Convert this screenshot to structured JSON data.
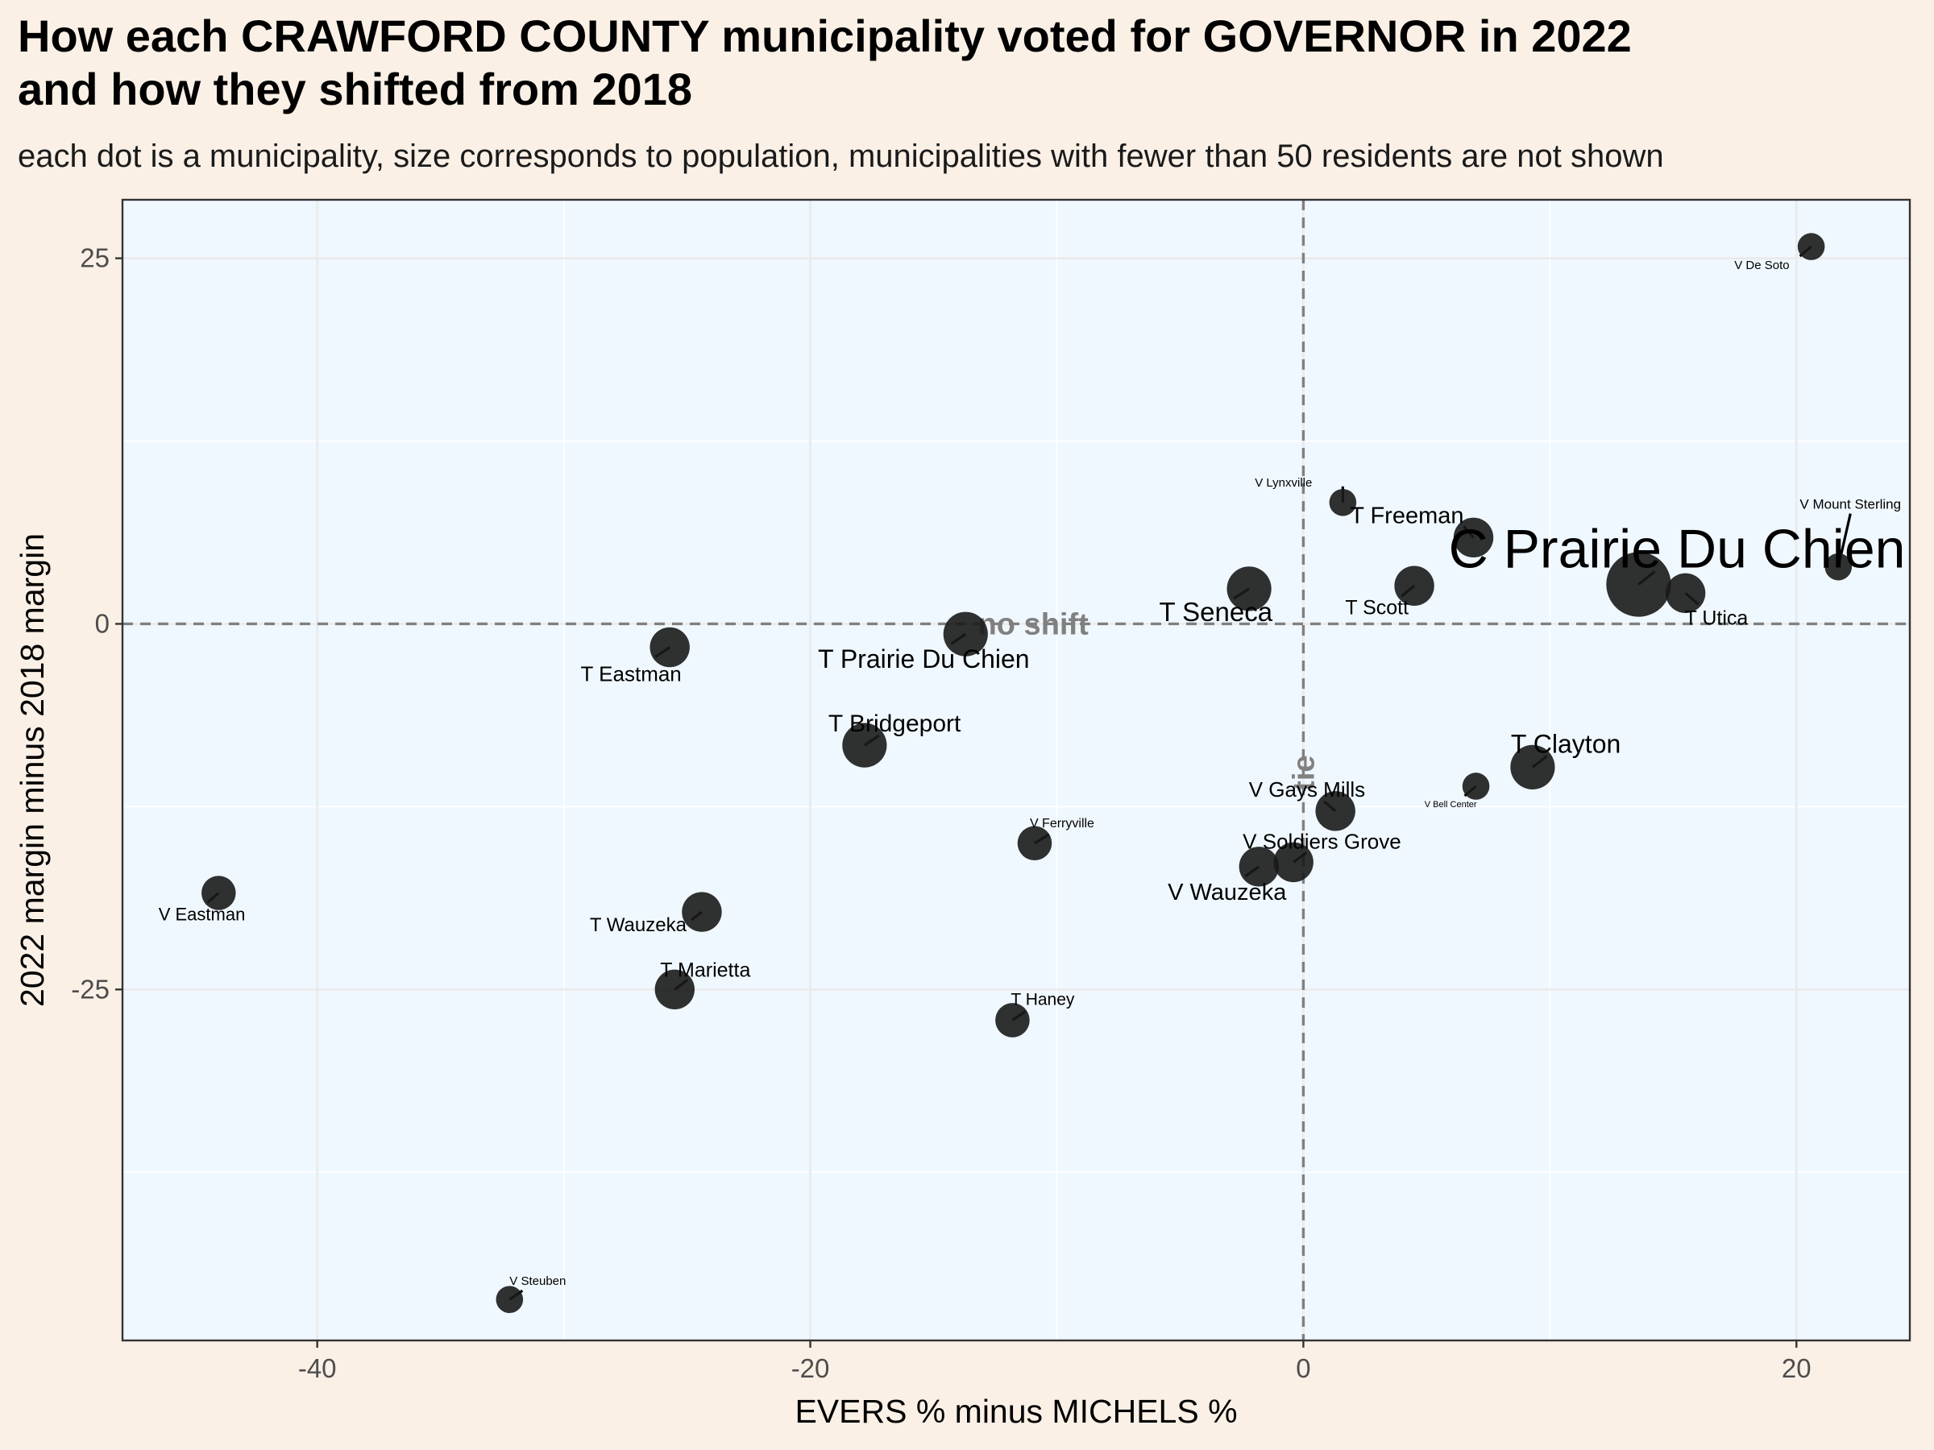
{
  "title": "How each CRAWFORD COUNTY municipality voted for GOVERNOR in 2022\nand how they shifted from 2018",
  "subtitle": "each dot is a municipality, size corresponds to population, municipalities with fewer than 50 residents are not shown",
  "colors": {
    "page_background": "#faf0e6",
    "panel_background": "#f0f8ff",
    "points": "#1a1a1a",
    "reference_lines": "#808080"
  },
  "chart_data": {
    "type": "scatter",
    "xlabel": "EVERS % minus MICHELS %",
    "ylabel": "2022 margin minus 2018 margin",
    "xlim": [
      -47.9,
      24.6
    ],
    "ylim": [
      -49,
      29
    ],
    "x_ticks": [
      -40,
      -20,
      0,
      20
    ],
    "x_tick_labels": [
      "-40",
      "-20",
      "0",
      "20"
    ],
    "y_ticks": [
      25,
      0,
      -25
    ],
    "y_tick_labels": [
      "25",
      "0",
      "-25"
    ],
    "grid": true,
    "reference_lines": [
      {
        "orientation": "horizontal",
        "value": 0,
        "label": "no shift"
      },
      {
        "orientation": "vertical",
        "value": 0,
        "label": "tie"
      }
    ],
    "points": [
      {
        "label": "V De Soto",
        "x": 20.6,
        "y": 25.8,
        "size": 1
      },
      {
        "label": "V Lynxville",
        "x": 1.6,
        "y": 8.3,
        "size": 1
      },
      {
        "label": "T Freeman",
        "x": 6.9,
        "y": 5.9,
        "size": 3
      },
      {
        "label": "V Mount Sterling",
        "x": 21.7,
        "y": 3.9,
        "size": 1
      },
      {
        "label": "C Prairie Du Chien",
        "x": 13.6,
        "y": 2.7,
        "size": 10
      },
      {
        "label": "T Seneca",
        "x": -2.2,
        "y": 2.4,
        "size": 4
      },
      {
        "label": "T Scott",
        "x": 4.5,
        "y": 2.6,
        "size": 3
      },
      {
        "label": "T Utica",
        "x": 15.5,
        "y": 2.1,
        "size": 3
      },
      {
        "label": "T Prairie Du Chien",
        "x": -13.7,
        "y": -0.7,
        "size": 4
      },
      {
        "label": "T Eastman",
        "x": -25.7,
        "y": -1.6,
        "size": 3
      },
      {
        "label": "T Bridgeport",
        "x": -17.8,
        "y": -8.3,
        "size": 4
      },
      {
        "label": "T Clayton",
        "x": 9.3,
        "y": -9.8,
        "size": 4
      },
      {
        "label": "V Bell Center",
        "x": 7.0,
        "y": -11.1,
        "size": 1
      },
      {
        "label": "V Gays Mills",
        "x": 1.3,
        "y": -12.8,
        "size": 3
      },
      {
        "label": "V Ferryville",
        "x": -10.9,
        "y": -15.0,
        "size": 2
      },
      {
        "label": "V Soldiers Grove",
        "x": -0.4,
        "y": -16.3,
        "size": 3
      },
      {
        "label": "V Wauzeka",
        "x": -1.8,
        "y": -16.6,
        "size": 3
      },
      {
        "label": "V Eastman",
        "x": -44.0,
        "y": -18.4,
        "size": 2
      },
      {
        "label": "T Wauzeka",
        "x": -24.4,
        "y": -19.7,
        "size": 3
      },
      {
        "label": "T Marietta",
        "x": -25.5,
        "y": -25.0,
        "size": 3
      },
      {
        "label": "T Haney",
        "x": -11.8,
        "y": -27.1,
        "size": 2
      },
      {
        "label": "V Steuben",
        "x": -32.2,
        "y": -46.2,
        "size": 1
      }
    ]
  }
}
